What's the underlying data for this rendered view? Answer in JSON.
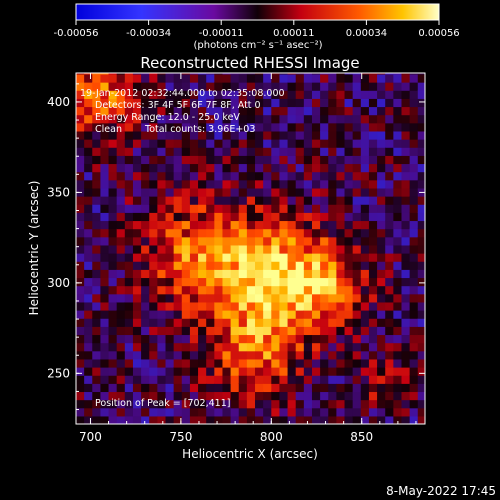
{
  "colorbar": {
    "ticks": [
      "-0.00056",
      "-0.00034",
      "-0.00011",
      "0.00011",
      "0.00034",
      "0.00056"
    ],
    "unit_label": "(photons cm⁻² s⁻¹ asec⁻²)",
    "range": [
      -0.00056,
      0.00056
    ]
  },
  "overlay": {
    "time_range": "19-Jan-2012 02:32:44.000 to 02:35:08.000",
    "detectors": "Detectors: 3F 4F 5F 6F 7F 8F, Att 0",
    "energy": "Energy Range: 12.0 - 25.0 keV",
    "algorithm": "Clean",
    "total_counts": "Total counts: 3.96E+03",
    "peak": "Position of Peak = [702,411]"
  },
  "footer": {
    "timestamp": "8-May-2022 17:45"
  },
  "chart_data": {
    "type": "heatmap",
    "title": "Reconstructed RHESSI Image",
    "xlabel": "Heliocentric X (arcsec)",
    "ylabel": "Heliocentric Y (arcsec)",
    "xlim": [
      692,
      885
    ],
    "ylim": [
      222,
      416
    ],
    "x_ticks": [
      "700",
      "750",
      "800",
      "850"
    ],
    "y_ticks": [
      "250",
      "300",
      "350",
      "400"
    ],
    "colorscale": [
      "#0000dc",
      "#2030ff",
      "#4a0a8a",
      "#140008",
      "#c40010",
      "#ff4a00",
      "#ffb800",
      "#ffff90"
    ],
    "sources": [
      {
        "x": 804,
        "y": 302,
        "sigma": 22,
        "amplitude": 0.00056
      },
      {
        "x": 760,
        "y": 315,
        "sigma": 22,
        "amplitude": 0.0004
      },
      {
        "x": 790,
        "y": 260,
        "sigma": 18,
        "amplitude": 0.00036
      },
      {
        "x": 833,
        "y": 300,
        "sigma": 14,
        "amplitude": 0.0003
      },
      {
        "x": 705,
        "y": 405,
        "sigma": 16,
        "amplitude": 0.0004
      },
      {
        "x": 865,
        "y": 245,
        "sigma": 10,
        "amplitude": 0.00022
      }
    ],
    "peak": [
      702,
      411
    ]
  }
}
